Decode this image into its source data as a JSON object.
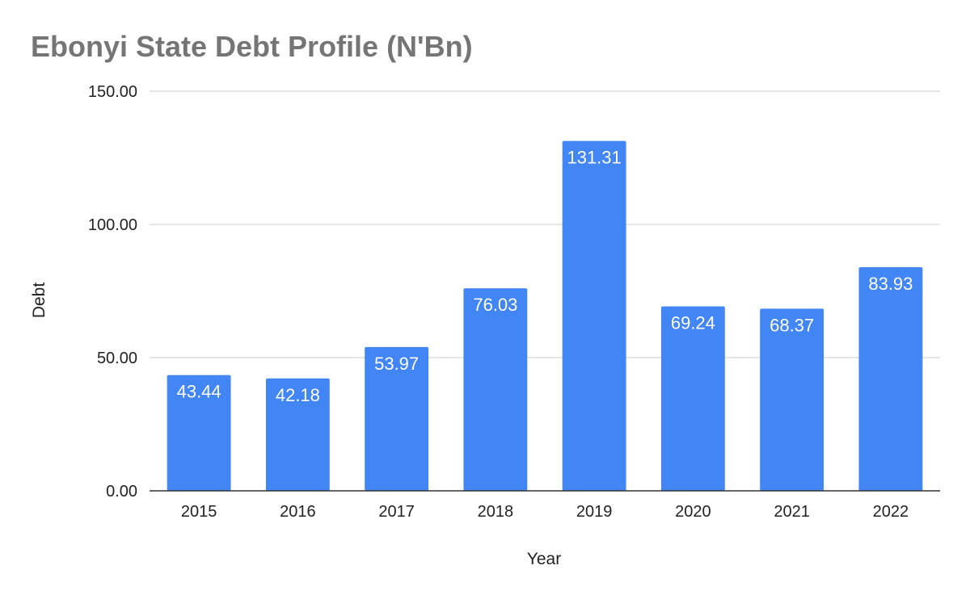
{
  "chart_data": {
    "type": "bar",
    "title": "Ebonyi State Debt Profile (N'Bn)",
    "xlabel": "Year",
    "ylabel": "Debt",
    "categories": [
      "2015",
      "2016",
      "2017",
      "2018",
      "2019",
      "2020",
      "2021",
      "2022"
    ],
    "values": [
      43.44,
      42.18,
      53.97,
      76.03,
      131.31,
      69.24,
      68.37,
      83.93
    ],
    "data_labels": [
      "43.44",
      "42.18",
      "53.97",
      "76.03",
      "131.31",
      "69.24",
      "68.37",
      "83.93"
    ],
    "ylim": [
      0,
      150
    ],
    "y_ticks": [
      0,
      50,
      100,
      150
    ],
    "y_tick_labels": [
      "0.00",
      "50.00",
      "100.00",
      "150.00"
    ],
    "grid": true,
    "legend": "none",
    "bar_color": "#4285f4"
  }
}
